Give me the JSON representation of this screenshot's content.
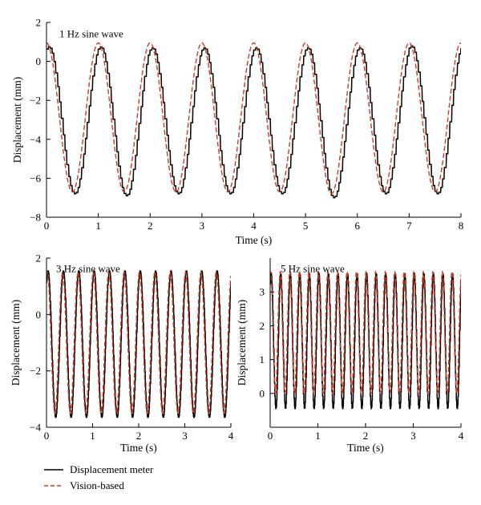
{
  "chart_data": [
    {
      "type": "line",
      "title": "1 Hz sine wave",
      "xlabel": "Time (s)",
      "ylabel": "Displacement (mm)",
      "xlim": [
        0,
        8
      ],
      "ylim": [
        -8,
        2
      ],
      "xticks": [
        0,
        1,
        2,
        3,
        4,
        5,
        6,
        7,
        8
      ],
      "yticks": [
        2,
        0,
        -2,
        -4,
        -6,
        -8
      ],
      "grid": false,
      "wave": {
        "frequency_hz": 1,
        "duration_s": 8
      },
      "series": [
        {
          "name": "Displacement meter",
          "color": "#000000",
          "style": "solid",
          "peak_values": [
            0.75,
            0.75,
            0.7,
            0.7,
            0.7,
            0.7,
            0.7,
            0.8
          ],
          "trough_values": [
            -6.8,
            -6.9,
            -6.8,
            -6.8,
            -6.8,
            -7.0,
            -6.8,
            -6.8
          ]
        },
        {
          "name": "Vision-based",
          "color": "#d9381e",
          "style": "dashed",
          "peak_values": [
            0.95,
            0.95,
            0.95,
            0.95,
            0.95,
            0.95,
            0.95,
            0.95
          ],
          "trough_values": [
            -6.7,
            -6.7,
            -6.7,
            -6.7,
            -6.7,
            -6.8,
            -6.7,
            -6.7
          ]
        }
      ]
    },
    {
      "type": "line",
      "title": "3 Hz sine wave",
      "xlabel": "Time (s)",
      "ylabel": "Displacement (mm)",
      "xlim": [
        0,
        4
      ],
      "ylim": [
        -4,
        2
      ],
      "xticks": [
        0,
        1,
        2,
        3,
        4
      ],
      "yticks": [
        2,
        0,
        -2,
        -4
      ],
      "grid": false,
      "wave": {
        "frequency_hz": 3,
        "duration_s": 4
      },
      "series": [
        {
          "name": "Displacement meter",
          "color": "#000000",
          "style": "solid",
          "peak_value": 1.55,
          "trough_value": -3.65
        },
        {
          "name": "Vision-based",
          "color": "#d9381e",
          "style": "dashed",
          "peak_value": 1.5,
          "trough_value": -3.5
        }
      ]
    },
    {
      "type": "line",
      "title": "5 Hz sine wave",
      "xlabel": "Time (s)",
      "ylabel": "Displacement (mm)",
      "xlim": [
        0,
        4
      ],
      "ylim": [
        -1,
        4
      ],
      "xticks": [
        0,
        1,
        2,
        3,
        4
      ],
      "yticks": [
        3,
        2,
        1,
        0
      ],
      "grid": false,
      "wave": {
        "frequency_hz": 5,
        "duration_s": 4
      },
      "series": [
        {
          "name": "Displacement meter",
          "color": "#000000",
          "style": "solid",
          "peak_value": 3.55,
          "trough_value": -0.45
        },
        {
          "name": "Vision-based",
          "color": "#d9381e",
          "style": "dashed",
          "peak_value": 3.6,
          "trough_value": 0.0
        }
      ]
    }
  ],
  "legend": {
    "items": [
      {
        "label": "Displacement meter",
        "color": "#000000",
        "style": "solid"
      },
      {
        "label": "Vision-based",
        "color": "#d9381e",
        "style": "dashed"
      }
    ]
  }
}
